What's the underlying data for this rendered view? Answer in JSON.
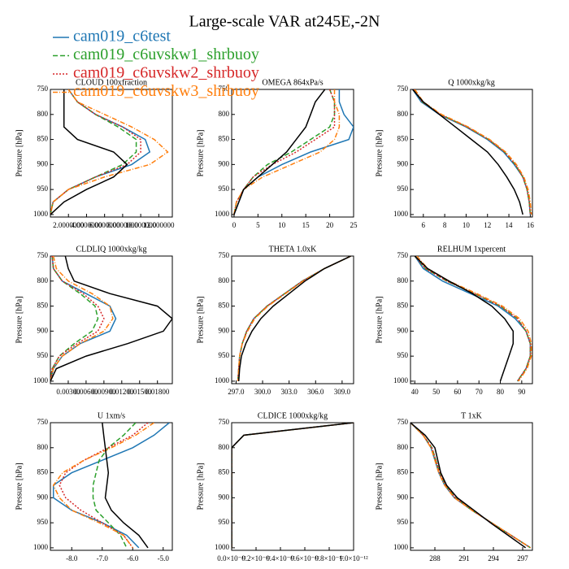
{
  "title": "Large-scale VAR at245E,-2N",
  "legend": [
    {
      "name": "cam019_c6test",
      "color": "#1f77b4",
      "dash": ""
    },
    {
      "name": "cam019_c6uvskw1_shrbuoy",
      "color": "#2ca02c",
      "dash": "6 3"
    },
    {
      "name": "cam019_c6uvskw2_shrbuoy",
      "color": "#d62728",
      "dash": "2 2"
    },
    {
      "name": "cam019_c6uvskw3_shrbuoy",
      "color": "#ff7f0e",
      "dash": "6 2 1 2"
    }
  ],
  "chart_data": [
    {
      "type": "line",
      "title": "CLOUD  100xfraction",
      "ylabel": "Pressure [hPa]",
      "y": [
        750,
        775,
        800,
        825,
        850,
        875,
        900,
        925,
        950,
        975,
        1000
      ],
      "ylim": [
        750,
        1005
      ],
      "yticks": [
        750,
        800,
        850,
        900,
        950,
        1000
      ],
      "xlim": [
        0,
        13.5
      ],
      "xticks": [
        {
          "value": 2,
          "label": "2.0000000"
        },
        {
          "value": 4,
          "label": "4.0000000"
        },
        {
          "value": 6,
          "label": "6.0000000"
        },
        {
          "value": 8,
          "label": "8.0000000"
        },
        {
          "value": 10,
          "label": "10.000000"
        },
        {
          "value": 12,
          "label": "12.000000"
        }
      ],
      "series": [
        {
          "color": "#1f77b4",
          "values": [
            2,
            3,
            5,
            8,
            10.5,
            11,
            9,
            5,
            2,
            0.3,
            0
          ]
        },
        {
          "color": "#2ca02c",
          "values": [
            2,
            3,
            5,
            7.5,
            9.5,
            9.5,
            8,
            5,
            2,
            0.3,
            0
          ]
        },
        {
          "color": "#d62728",
          "values": [
            2,
            3,
            5,
            8,
            10,
            10,
            8.5,
            5,
            2,
            0.3,
            0
          ]
        },
        {
          "color": "#ff7f0e",
          "values": [
            2,
            3,
            6,
            9,
            11.5,
            13,
            11,
            6,
            2,
            0.3,
            0
          ]
        },
        {
          "color": "#000000",
          "values": [
            1.5,
            1.5,
            1.5,
            1.5,
            3,
            7,
            8.5,
            7,
            4,
            1.5,
            0
          ]
        }
      ]
    },
    {
      "type": "line",
      "title": "OMEGA  864xPa/s",
      "ylabel": "Pressure [hPa]",
      "y": [
        750,
        775,
        800,
        825,
        850,
        875,
        900,
        925,
        950,
        975,
        1000
      ],
      "ylim": [
        750,
        1005
      ],
      "yticks": [
        750,
        800,
        850,
        900,
        950,
        1000
      ],
      "xlim": [
        -0.5,
        25
      ],
      "xticks": [
        0,
        5,
        10,
        15,
        20,
        25
      ],
      "series": [
        {
          "color": "#1f77b4",
          "values": [
            22,
            22,
            23,
            25,
            24,
            16,
            10,
            5,
            2,
            1,
            0
          ]
        },
        {
          "color": "#2ca02c",
          "values": [
            20,
            21,
            21,
            20,
            16,
            12,
            7,
            4,
            2,
            0.5,
            0
          ]
        },
        {
          "color": "#d62728",
          "values": [
            20,
            21,
            21,
            21,
            17,
            13,
            8,
            4,
            2,
            0.5,
            0
          ]
        },
        {
          "color": "#ff7f0e",
          "values": [
            21,
            21,
            22,
            22,
            21,
            18,
            12,
            6,
            2,
            0.5,
            0
          ]
        },
        {
          "color": "#000000",
          "values": [
            19,
            17,
            16,
            15,
            13,
            11,
            8,
            5,
            2,
            1,
            0
          ]
        }
      ]
    },
    {
      "type": "line",
      "title": "Q  1000xkg/kg",
      "ylabel": "Pressure [hPa]",
      "y": [
        750,
        775,
        800,
        825,
        850,
        875,
        900,
        925,
        950,
        975,
        1000
      ],
      "ylim": [
        750,
        1005
      ],
      "yticks": [
        750,
        800,
        850,
        900,
        950,
        1000
      ],
      "xlim": [
        4.8,
        16.2
      ],
      "xticks": [
        6,
        8,
        10,
        12,
        14,
        16
      ],
      "series": [
        {
          "color": "#1f77b4",
          "values": [
            5,
            5.8,
            7.5,
            10,
            12,
            13.5,
            14.5,
            15.3,
            15.7,
            15.9,
            16
          ]
        },
        {
          "color": "#2ca02c",
          "values": [
            5.1,
            5.9,
            7.6,
            10.1,
            12.1,
            13.6,
            14.6,
            15.3,
            15.7,
            15.9,
            16
          ]
        },
        {
          "color": "#d62728",
          "values": [
            5.1,
            5.9,
            7.6,
            10.1,
            12.1,
            13.6,
            14.6,
            15.3,
            15.7,
            15.9,
            16
          ]
        },
        {
          "color": "#ff7f0e",
          "values": [
            5.2,
            6,
            7.7,
            10.2,
            12.2,
            13.7,
            14.7,
            15.4,
            15.8,
            16,
            16.1
          ]
        },
        {
          "color": "#000000",
          "values": [
            5,
            6,
            7.5,
            9,
            10.5,
            12,
            13,
            13.8,
            14.5,
            15,
            15.3
          ]
        }
      ]
    },
    {
      "type": "line",
      "title": "CLDLIQ  1000xkg/kg",
      "ylabel": "Pressure [hPa]",
      "y": [
        750,
        775,
        800,
        825,
        850,
        875,
        900,
        925,
        950,
        975,
        1000
      ],
      "ylim": [
        750,
        1005
      ],
      "yticks": [
        750,
        800,
        850,
        900,
        950,
        1000
      ],
      "xlim": [
        0,
        0.0205
      ],
      "xticks": [
        {
          "value": 0.003,
          "label": "0.00300"
        },
        {
          "value": 0.006,
          "label": "0.00600"
        },
        {
          "value": 0.009,
          "label": "0.00900"
        },
        {
          "value": 0.012,
          "label": "0.01200"
        },
        {
          "value": 0.015,
          "label": "0.01500"
        },
        {
          "value": 0.018,
          "label": "0.01800"
        }
      ],
      "series": [
        {
          "color": "#1f77b4",
          "values": [
            0.0003,
            0.0005,
            0.002,
            0.006,
            0.01,
            0.011,
            0.01,
            0.005,
            0.002,
            0.0005,
            0
          ]
        },
        {
          "color": "#2ca02c",
          "values": [
            0.0003,
            0.0005,
            0.002,
            0.005,
            0.0075,
            0.008,
            0.007,
            0.004,
            0.0015,
            0.0003,
            0
          ]
        },
        {
          "color": "#d62728",
          "values": [
            0.0003,
            0.0005,
            0.002,
            0.0055,
            0.008,
            0.009,
            0.008,
            0.0045,
            0.0015,
            0.0003,
            0
          ]
        },
        {
          "color": "#ff7f0e",
          "values": [
            0.0005,
            0.001,
            0.003,
            0.007,
            0.01,
            0.0105,
            0.009,
            0.005,
            0.002,
            0.0005,
            0
          ]
        },
        {
          "color": "#000000",
          "values": [
            0.0025,
            0.003,
            0.004,
            0.01,
            0.018,
            0.0205,
            0.019,
            0.013,
            0.006,
            0.001,
            0
          ]
        }
      ]
    },
    {
      "type": "line",
      "title": "THETA  1.0xK",
      "ylabel": "Pressure [hPa]",
      "y": [
        750,
        775,
        800,
        825,
        850,
        875,
        900,
        925,
        950,
        975,
        1000
      ],
      "ylim": [
        750,
        1005
      ],
      "yticks": [
        750,
        800,
        850,
        900,
        950,
        1000
      ],
      "xlim": [
        296.5,
        310.3
      ],
      "xticks": [
        {
          "value": 297,
          "label": "297.0"
        },
        {
          "value": 300,
          "label": "300.0"
        },
        {
          "value": 303,
          "label": "303.0"
        },
        {
          "value": 306,
          "label": "306.0"
        },
        {
          "value": 309,
          "label": "309.0"
        }
      ],
      "series": [
        {
          "color": "#1f77b4",
          "values": [
            310,
            307,
            304.5,
            302.5,
            300.5,
            299,
            298.2,
            297.7,
            297.4,
            297.3,
            297.2
          ]
        },
        {
          "color": "#2ca02c",
          "values": [
            310,
            307,
            304.5,
            302.5,
            300.5,
            299,
            298.2,
            297.7,
            297.4,
            297.3,
            297.2
          ]
        },
        {
          "color": "#d62728",
          "values": [
            310,
            307,
            304.5,
            302.5,
            300.5,
            299,
            298.2,
            297.7,
            297.4,
            297.3,
            297.2
          ]
        },
        {
          "color": "#ff7f0e",
          "values": [
            310,
            307,
            304.6,
            302.6,
            300.6,
            299.1,
            298.3,
            297.7,
            297.4,
            297.3,
            297.2
          ]
        },
        {
          "color": "#000000",
          "values": [
            310,
            307,
            304.8,
            303,
            301.2,
            299.8,
            298.8,
            298.1,
            297.6,
            297.4,
            297.3
          ]
        }
      ]
    },
    {
      "type": "line",
      "title": "RELHUM  1xpercent",
      "ylabel": "Pressure [hPa]",
      "y": [
        750,
        775,
        800,
        825,
        850,
        875,
        900,
        925,
        950,
        975,
        1000
      ],
      "ylim": [
        750,
        1005
      ],
      "yticks": [
        750,
        800,
        850,
        900,
        950,
        1000
      ],
      "xlim": [
        38,
        95
      ],
      "xticks": [
        40,
        50,
        60,
        70,
        80,
        90
      ],
      "series": [
        {
          "color": "#1f77b4",
          "values": [
            40,
            44,
            53,
            66,
            79,
            87,
            92,
            94,
            94,
            92,
            88
          ]
        },
        {
          "color": "#2ca02c",
          "values": [
            40,
            45,
            55,
            68,
            80,
            88,
            92,
            94,
            94,
            92,
            88
          ]
        },
        {
          "color": "#d62728",
          "values": [
            40,
            45,
            55,
            68,
            80,
            88,
            92,
            94,
            94,
            92,
            88
          ]
        },
        {
          "color": "#ff7f0e",
          "values": [
            41,
            46,
            56,
            69,
            81,
            89,
            93,
            94.5,
            94.5,
            92.5,
            88.5
          ]
        },
        {
          "color": "#000000",
          "values": [
            40,
            46,
            56,
            67,
            76,
            82,
            86,
            86,
            84,
            82,
            80
          ]
        }
      ]
    },
    {
      "type": "line",
      "title": "U  1xm/s",
      "ylabel": "Pressure [hPa]",
      "y": [
        750,
        775,
        800,
        825,
        850,
        875,
        900,
        925,
        950,
        975,
        1000
      ],
      "ylim": [
        750,
        1005
      ],
      "yticks": [
        750,
        800,
        850,
        900,
        950,
        1000
      ],
      "xlim": [
        -8.7,
        -4.7
      ],
      "xticks": [
        {
          "value": -8,
          "label": "-8.0"
        },
        {
          "value": -7,
          "label": "-7.0"
        },
        {
          "value": -6,
          "label": "-6.0"
        },
        {
          "value": -5,
          "label": "-5.0"
        }
      ],
      "series": [
        {
          "color": "#1f77b4",
          "values": [
            -4.8,
            -5.3,
            -6,
            -7,
            -8,
            -8.6,
            -8.6,
            -8,
            -7,
            -6.2,
            -5.8
          ]
        },
        {
          "color": "#2ca02c",
          "values": [
            -5.9,
            -6.3,
            -6.8,
            -7.1,
            -7.2,
            -7.3,
            -7.3,
            -7.2,
            -6.8,
            -6.4,
            -6.2
          ]
        },
        {
          "color": "#d62728",
          "values": [
            -5.5,
            -6,
            -6.8,
            -7.6,
            -8.2,
            -8.4,
            -8.2,
            -7.7,
            -7,
            -6.3,
            -6
          ]
        },
        {
          "color": "#ff7f0e",
          "values": [
            -5.3,
            -5.9,
            -6.7,
            -7.6,
            -8.3,
            -8.6,
            -8.4,
            -8,
            -7.1,
            -6.3,
            -6
          ]
        },
        {
          "color": "#000000",
          "values": [
            -7,
            -6.95,
            -6.9,
            -6.85,
            -6.8,
            -6.85,
            -6.9,
            -6.7,
            -6.3,
            -5.8,
            -5.5
          ]
        }
      ]
    },
    {
      "type": "line",
      "title": "CLDICE  1000xkg/kg",
      "ylabel": "Pressure [hPa]",
      "y": [
        750,
        775,
        800,
        825,
        850,
        875,
        900,
        925,
        950,
        975,
        1000
      ],
      "ylim": [
        750,
        1005
      ],
      "yticks": [
        750,
        800,
        850,
        900,
        950,
        1000
      ],
      "xlim": [
        0,
        1e-12
      ],
      "xticks": [
        {
          "value": 0,
          "label": "0.0×10⁻¹²"
        },
        {
          "value": 2e-13,
          "label": "0.2×10⁻¹²"
        },
        {
          "value": 4e-13,
          "label": "0.4×10⁻¹²"
        },
        {
          "value": 6e-13,
          "label": "0.6×10⁻¹²"
        },
        {
          "value": 8e-13,
          "label": "0.8×10⁻¹²"
        },
        {
          "value": 1e-12,
          "label": "1.0×10⁻¹²"
        }
      ],
      "series": [
        {
          "color": "#1f77b4",
          "values": [
            1e-12,
            1e-13,
            0,
            0,
            0,
            0,
            0,
            0,
            0,
            0,
            0
          ]
        },
        {
          "color": "#2ca02c",
          "values": [
            1e-12,
            1e-13,
            0,
            0,
            0,
            0,
            0,
            0,
            0,
            0,
            0
          ]
        },
        {
          "color": "#d62728",
          "values": [
            1e-12,
            1e-13,
            0,
            0,
            0,
            0,
            0,
            0,
            0,
            0,
            0
          ]
        },
        {
          "color": "#ff7f0e",
          "values": [
            1e-12,
            1e-13,
            0,
            0,
            0,
            0,
            0,
            0,
            0,
            0,
            0
          ]
        },
        {
          "color": "#000000",
          "values": [
            1e-12,
            1e-13,
            0,
            0,
            0,
            0,
            0,
            0,
            0,
            0,
            0
          ]
        }
      ]
    },
    {
      "type": "line",
      "title": "T  1xK",
      "ylabel": "Pressure [hPa]",
      "y": [
        750,
        775,
        800,
        825,
        850,
        875,
        900,
        925,
        950,
        975,
        1000
      ],
      "ylim": [
        750,
        1005
      ],
      "yticks": [
        750,
        800,
        850,
        900,
        950,
        1000
      ],
      "xlim": [
        285.5,
        298
      ],
      "xticks": [
        288,
        291,
        294,
        297
      ],
      "series": [
        {
          "color": "#1f77b4",
          "values": [
            285.5,
            286.8,
            287.6,
            288,
            288.4,
            289,
            290,
            291.8,
            293.8,
            295.8,
            297.8
          ]
        },
        {
          "color": "#2ca02c",
          "values": [
            285.5,
            286.8,
            287.7,
            288.1,
            288.5,
            289.1,
            290.1,
            291.8,
            293.8,
            295.8,
            297.8
          ]
        },
        {
          "color": "#d62728",
          "values": [
            285.5,
            286.8,
            287.7,
            288.1,
            288.5,
            289.1,
            290.1,
            291.8,
            293.8,
            295.8,
            297.8
          ]
        },
        {
          "color": "#ff7f0e",
          "values": [
            285.5,
            286.8,
            287.6,
            288,
            288.4,
            289,
            290,
            291.8,
            293.8,
            295.8,
            297.8
          ]
        },
        {
          "color": "#000000",
          "values": [
            285.5,
            287,
            288,
            288.3,
            288.6,
            289.2,
            290.3,
            292,
            293.7,
            295.5,
            297.3
          ]
        }
      ]
    }
  ]
}
